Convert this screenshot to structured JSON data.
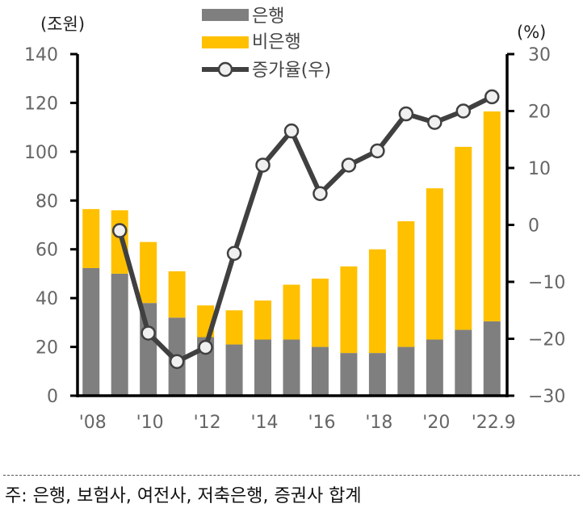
{
  "chart_data": {
    "type": "bar",
    "stacked": true,
    "title": "",
    "left_unit": "(조원)",
    "right_unit": "(%)",
    "categories": [
      "'08",
      "'09",
      "'10",
      "'11",
      "'12",
      "'13",
      "'14",
      "'15",
      "'16",
      "'17",
      "'18",
      "'19",
      "'20",
      "'21",
      "'22.9"
    ],
    "x_tick_labels": [
      "'08",
      "'10",
      "'12",
      "'14",
      "'16",
      "'18",
      "'20",
      "'22.9"
    ],
    "x_tick_indices": [
      0,
      2,
      4,
      6,
      8,
      10,
      12,
      14
    ],
    "ylim_left": [
      0,
      140
    ],
    "yticks_left": [
      0,
      20,
      40,
      60,
      80,
      100,
      120,
      140
    ],
    "ylim_right": [
      -30,
      30
    ],
    "yticks_right": [
      -30,
      -20,
      -10,
      0,
      10,
      20,
      30
    ],
    "grid": false,
    "legend_position": "top-center",
    "series": [
      {
        "name": "은행",
        "type": "bar",
        "axis": "left",
        "color": "#7f7f7f",
        "values": [
          52.3,
          50,
          38,
          32,
          24,
          21,
          23,
          23,
          20,
          17.5,
          17.5,
          20,
          23,
          27,
          30.5
        ]
      },
      {
        "name": "비은행",
        "type": "bar",
        "axis": "left",
        "color": "#ffc000",
        "values": [
          24.2,
          26,
          25,
          19,
          13,
          14,
          16,
          22.5,
          28,
          35.5,
          42.5,
          51.5,
          62,
          75,
          86
        ]
      },
      {
        "name": "증가율(우)",
        "type": "line",
        "axis": "right",
        "color": "#404040",
        "marker_fill": "#f0f0f0",
        "values": [
          null,
          -1,
          -19,
          -24,
          -21.5,
          -5,
          10.5,
          16.5,
          5.5,
          10.5,
          13,
          19.5,
          18,
          20,
          22.5
        ]
      }
    ]
  },
  "note": "주: 은행, 보험사, 여전사, 저축은행, 증권사 합계"
}
